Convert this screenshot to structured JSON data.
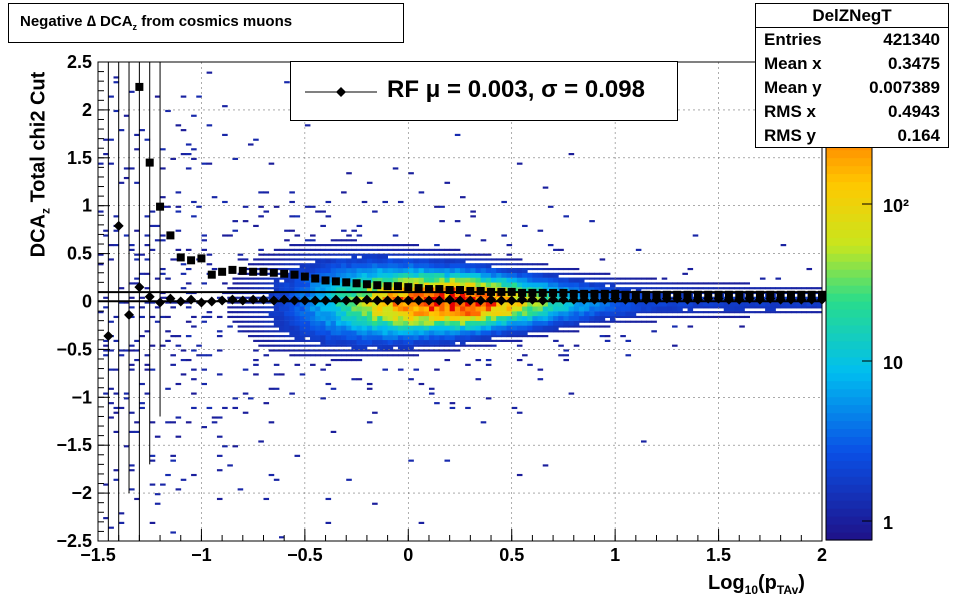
{
  "title": {
    "prefix": "Negative ∆ DCA",
    "sub": "z",
    "suffix": " from cosmics muons"
  },
  "stats": {
    "name": "DelZNegT",
    "rows": [
      {
        "label": "Entries",
        "value": "421340"
      },
      {
        "label": "Mean x",
        "value": "0.3475"
      },
      {
        "label": "Mean y",
        "value": "0.007389"
      },
      {
        "label": "RMS x",
        "value": "0.4943"
      },
      {
        "label": "RMS y",
        "value": "0.164"
      }
    ]
  },
  "legend": {
    "text": "RF μ =  0.003, σ =   0.098"
  },
  "axes": {
    "xlabel": {
      "main": "Log",
      "sub1": "10",
      "mid": "(p",
      "sub2": "TAv",
      "end": ")"
    },
    "ylabel": {
      "main": "DCA",
      "sub": "z",
      "suffix": "  Total chi2 Cut"
    }
  },
  "chart_data": {
    "type": "heatmap",
    "xlim": [
      -1.5,
      2
    ],
    "ylim": [
      -2.5,
      2.5
    ],
    "xticks": [
      "−1.5",
      "−1",
      "−0.5",
      "0",
      "0.5",
      "1",
      "1.5",
      "2"
    ],
    "yticks": [
      "−2.5",
      "−2",
      "−1.5",
      "−1",
      "−0.5",
      "0",
      "0.5",
      "1",
      "1.5",
      "2",
      "2.5"
    ],
    "zscale": "log",
    "zticks": [
      "1",
      "10",
      "10²"
    ],
    "grid": true,
    "mean_points": {
      "x": [
        -1.45,
        -1.4,
        -1.35,
        -1.3,
        -1.25,
        -1.2,
        -1.15,
        -1.1,
        -1.05,
        -1.0,
        -0.95,
        -0.9,
        -0.85,
        -0.8,
        -0.75,
        -0.7,
        -0.65,
        -0.6,
        -0.55,
        -0.5,
        -0.45,
        -0.4,
        -0.35,
        -0.3,
        -0.25,
        -0.2,
        -0.15,
        -0.1,
        -0.05,
        0.0,
        0.05,
        0.1,
        0.15,
        0.2,
        0.25,
        0.3,
        0.35,
        0.4,
        0.45,
        0.5,
        0.55,
        0.6,
        0.65,
        0.7,
        0.75,
        0.8,
        0.85,
        0.9,
        0.95,
        1.0,
        1.05,
        1.1,
        1.15,
        1.2,
        1.25,
        1.3,
        1.35,
        1.4,
        1.45,
        1.5,
        1.55,
        1.6,
        1.65,
        1.7,
        1.75,
        1.8,
        1.85,
        1.9,
        1.95,
        2.0
      ],
      "y": [
        -0.36,
        0.79,
        -0.14,
        0.15,
        0.05,
        -0.01,
        0.03,
        0.0,
        0.02,
        -0.01,
        0.0,
        0.01,
        0.02,
        0.01,
        0.02,
        0.02,
        0.01,
        0.02,
        0.01,
        0.01,
        0.01,
        0.01,
        0.02,
        0.01,
        0.01,
        0.02,
        0.01,
        0.01,
        0.01,
        0.01,
        0.01,
        0.01,
        0.01,
        0.02,
        0.01,
        0.01,
        0.01,
        0.02,
        0.01,
        0.01,
        0.02,
        0.02,
        0.01,
        0.02,
        0.02,
        0.02,
        0.02,
        0.02,
        0.02,
        0.03,
        0.02,
        0.02,
        0.02,
        0.02,
        0.03,
        0.03,
        0.02,
        0.02,
        0.03,
        0.03,
        0.02,
        0.02,
        0.03,
        0.02,
        0.03,
        0.02,
        0.02,
        0.02,
        0.02,
        0.02
      ]
    },
    "rms_points": {
      "x": [
        -1.3,
        -1.25,
        -1.2,
        -1.15,
        -1.1,
        -1.05,
        -1.0,
        -0.95,
        -0.9,
        -0.85,
        -0.8,
        -0.75,
        -0.7,
        -0.65,
        -0.6,
        -0.55,
        -0.5,
        -0.45,
        -0.4,
        -0.35,
        -0.3,
        -0.25,
        -0.2,
        -0.15,
        -0.1,
        -0.05,
        0.0,
        0.05,
        0.1,
        0.15,
        0.2,
        0.25,
        0.3,
        0.35,
        0.4,
        0.45,
        0.5,
        0.55,
        0.6,
        0.65,
        0.7,
        0.75,
        0.8,
        0.85,
        0.9,
        0.95,
        1.0,
        1.05,
        1.1,
        1.15,
        1.2,
        1.25,
        1.3,
        1.35,
        1.4,
        1.45,
        1.5,
        1.55,
        1.6,
        1.65,
        1.7,
        1.75,
        1.8,
        1.85,
        1.9,
        1.95,
        2.0
      ],
      "y": [
        2.24,
        1.45,
        0.99,
        0.69,
        0.46,
        0.43,
        0.45,
        0.28,
        0.31,
        0.33,
        0.32,
        0.31,
        0.31,
        0.3,
        0.29,
        0.28,
        0.26,
        0.24,
        0.22,
        0.21,
        0.2,
        0.19,
        0.18,
        0.17,
        0.16,
        0.16,
        0.15,
        0.14,
        0.13,
        0.13,
        0.12,
        0.12,
        0.11,
        0.11,
        0.1,
        0.1,
        0.1,
        0.09,
        0.09,
        0.09,
        0.09,
        0.09,
        0.08,
        0.08,
        0.08,
        0.08,
        0.08,
        0.07,
        0.07,
        0.07,
        0.07,
        0.07,
        0.07,
        0.07,
        0.07,
        0.07,
        0.07,
        0.07,
        0.07,
        0.07,
        0.07,
        0.07,
        0.07,
        0.07,
        0.07,
        0.07,
        0.07
      ]
    },
    "fit_lines": [
      0.003,
      0.098
    ]
  },
  "colors": {
    "marker": "#000000",
    "line": "#000000"
  }
}
